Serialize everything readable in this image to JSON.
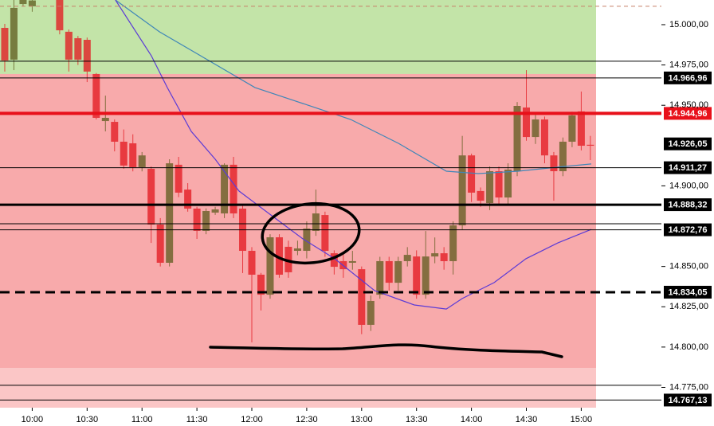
{
  "chart_data": {
    "type": "candlestick",
    "x": [
      585,
      590,
      595,
      600,
      615,
      620,
      625,
      630,
      635,
      640,
      645,
      650,
      655,
      660,
      665,
      670,
      675,
      680,
      685,
      690,
      695,
      700,
      705,
      710,
      715,
      720,
      725,
      730,
      735,
      740,
      745,
      750,
      755,
      760,
      765,
      770,
      775,
      780,
      785,
      790,
      795,
      800,
      805,
      810,
      815,
      820,
      825,
      830,
      835,
      840,
      845,
      850,
      855,
      860,
      865,
      870,
      875,
      880,
      885,
      890,
      895,
      900,
      905
    ],
    "open": [
      14998.0,
      14978.3,
      15012.8,
      15011.4,
      15016.0,
      14995.6,
      14991.6,
      14990.6,
      14969.4,
      14940.2,
      14939.7,
      14927.4,
      14926.4,
      14911.6,
      14910.6,
      14876.0,
      14852.3,
      14913.1,
      14897.7,
      14885.9,
      14872.1,
      14883.4,
      14882.9,
      14913.1,
      14885.9,
      14859.7,
      14844.9,
      14832.5,
      14868.1,
      14862.2,
      14859.7,
      14859.7,
      14872.1,
      14881.9,
      14858.2,
      14853.3,
      14852.3,
      14848.3,
      14813.8,
      14832.5,
      14853.3,
      14839.9,
      14853.3,
      14856.2,
      14832.5,
      14856.2,
      14858.2,
      14853.3,
      14875.5,
      14918.9,
      14896.8,
      14889.3,
      14909.1,
      14892.8,
      14909.1,
      14948.6,
      14930.3,
      14941.2,
      14918.9,
      14909.1,
      14927.4,
      14946.2,
      14925.5
    ],
    "close": [
      14977.8,
      15010.4,
      15015.3,
      15015.0,
      14996.5,
      14978.3,
      14978.3,
      14970.9,
      14942.2,
      14942.2,
      14927.4,
      14912.6,
      14911.6,
      14918.9,
      14876.0,
      14852.3,
      14914.0,
      14895.8,
      14885.9,
      14872.1,
      14884.4,
      14885.4,
      14913.1,
      14882.9,
      14859.7,
      14844.9,
      14832.5,
      14868.1,
      14844.9,
      14846.4,
      14861.2,
      14873.5,
      14882.9,
      14859.7,
      14849.8,
      14848.3,
      14853.3,
      14813.8,
      14828.6,
      14853.3,
      14839.9,
      14853.3,
      14857.2,
      14832.5,
      14856.2,
      14858.2,
      14853.3,
      14875.5,
      14918.9,
      14895.8,
      14890.8,
      14909.1,
      14892.8,
      14910.1,
      14949.6,
      14930.3,
      14941.2,
      14918.9,
      14909.1,
      14927.4,
      14943.7,
      14924.9,
      14924.9
    ],
    "high": [
      15000.5,
      15015.3,
      15016.0,
      15018.0,
      15020.0,
      14997.0,
      14993.0,
      14992.0,
      14970.0,
      14956.0,
      14941.2,
      14935.0,
      14932.0,
      14921.0,
      14912.0,
      14880.0,
      14916.5,
      14918.0,
      14901.7,
      14887.0,
      14886.0,
      14887.0,
      14914.0,
      14918.0,
      14888.0,
      14862.0,
      14846.0,
      14870.0,
      14870.0,
      14866.0,
      14866.0,
      14878.0,
      14897.7,
      14884.0,
      14860.0,
      14858.0,
      14859.7,
      14850.0,
      14832.0,
      14856.0,
      14856.0,
      14856.0,
      14862.0,
      14860.0,
      14872.0,
      14868.0,
      14862.0,
      14878.0,
      14931.0,
      14920.0,
      14899.0,
      14912.0,
      14912.0,
      14914.0,
      14952.0,
      14971.8,
      14944.0,
      14943.0,
      14921.0,
      14930.0,
      14946.0,
      14958.5,
      14931.0
    ],
    "low": [
      14970.9,
      14971.8,
      15011.4,
      15008.0,
      14994.0,
      14970.9,
      14975.0,
      14964.4,
      14941.2,
      14933.8,
      14921.4,
      14910.6,
      14909.0,
      14909.0,
      14864.6,
      14850.0,
      14850.0,
      14893.0,
      14884.0,
      14867.1,
      14870.0,
      14882.0,
      14880.0,
      14880.0,
      14845.9,
      14802.9,
      14822.7,
      14830.0,
      14843.0,
      14843.0,
      14857.0,
      14855.0,
      14869.0,
      14856.0,
      14845.0,
      14843.0,
      14848.0,
      14808.0,
      14810.0,
      14830.0,
      14835.0,
      14835.0,
      14850.0,
      14830.0,
      14830.0,
      14852.0,
      14848.0,
      14845.0,
      14873.0,
      14890.0,
      14887.0,
      14885.0,
      14888.0,
      14888.0,
      14906.0,
      14928.0,
      14926.0,
      14914.0,
      14890.8,
      14906.0,
      14924.0,
      14922.0,
      14916.0
    ],
    "up_color": "#5e5a1c",
    "down_color": "#e3141c",
    "series": [
      {
        "color": "#3f86b8",
        "x": [
          645.5,
          669.5,
          695.6,
          721.7,
          747.9,
          774.0,
          800.1,
          826.3,
          843.7,
          865.5,
          887.2,
          905.5
        ],
        "values": [
          15015.3,
          14995.6,
          14978.3,
          14961.0,
          14951.1,
          14941.2,
          14926.4,
          14909.1,
          14907.6,
          14909.1,
          14911.6,
          14913.6
        ]
      },
      {
        "color": "#5b3bd6",
        "x": [
          645.5,
          665.1,
          673.8,
          686.9,
          700.0,
          713.0,
          730.5,
          747.9,
          765.3,
          787.1,
          808.8,
          826.3,
          835.0,
          852.4,
          869.8,
          887.2,
          905.5
        ],
        "values": [
          15015.3,
          14980.7,
          14961.0,
          14933.8,
          14916.5,
          14896.8,
          14881.9,
          14867.1,
          14854.8,
          14835.0,
          14826.1,
          14823.6,
          14830.1,
          14840.0,
          14854.8,
          14864.6,
          14873.0
        ]
      }
    ],
    "zones": [
      {
        "from": 14969.4,
        "to": 15015.3,
        "color": "#c3e4a8"
      },
      {
        "from": 14787.0,
        "to": 14969.4,
        "color": "#f8aaab"
      },
      {
        "from": 14762.4,
        "to": 14787.0,
        "color": "#fbc6c6"
      }
    ],
    "guides": [
      {
        "value": 15011.4,
        "color": "#c8806a",
        "dash": true
      },
      {
        "value": 14977.3,
        "color": "#000000",
        "dash": false
      },
      {
        "value": 14876.5,
        "color": "#000000",
        "dash": false
      },
      {
        "value": 14776.3,
        "color": "#000000",
        "dash": false
      }
    ],
    "levels": [
      {
        "value": 14966.96,
        "label": "14.966,96",
        "color": "#000000",
        "width": 1,
        "dash": false,
        "line": true
      },
      {
        "value": 14944.96,
        "label": "14.944,96",
        "color": "#e8101a",
        "width": 4,
        "dash": false,
        "line": true
      },
      {
        "value": 14926.05,
        "label": "14.926,05",
        "color": "#000000",
        "width": 1,
        "dash": false,
        "line": false
      },
      {
        "value": 14911.27,
        "label": "14.911,27",
        "color": "#000000",
        "width": 1,
        "dash": false,
        "line": true
      },
      {
        "value": 14888.32,
        "label": "14.888,32",
        "color": "#000000",
        "width": 3,
        "dash": false,
        "line": true
      },
      {
        "value": 14872.76,
        "label": "14.872,76",
        "color": "#000000",
        "width": 1,
        "dash": false,
        "line": true
      },
      {
        "value": 14834.05,
        "label": "14.834,05",
        "color": "#000000",
        "width": 3,
        "dash": true,
        "line": true
      },
      {
        "value": 14767.13,
        "label": "14.767,13",
        "color": "#000000",
        "width": 1,
        "dash": false,
        "line": true
      }
    ],
    "xlim": [
      582.4,
      908.1
    ],
    "xticks": [
      {
        "value": 600,
        "label": "10:00"
      },
      {
        "value": 630,
        "label": "10:30"
      },
      {
        "value": 660,
        "label": "11:00"
      },
      {
        "value": 690,
        "label": "11:30"
      },
      {
        "value": 720,
        "label": "12:00"
      },
      {
        "value": 750,
        "label": "12:30"
      },
      {
        "value": 780,
        "label": "13:00"
      },
      {
        "value": 810,
        "label": "13:30"
      },
      {
        "value": 840,
        "label": "14:00"
      },
      {
        "value": 870,
        "label": "14:30"
      },
      {
        "value": 900,
        "label": "15:00"
      }
    ],
    "ylim": [
      14762.4,
      15015.3
    ],
    "yticks": [
      {
        "value": 15000,
        "label": "15.000,00"
      },
      {
        "value": 14975,
        "label": "14.975,00"
      },
      {
        "value": 14950,
        "label": "14.950,00"
      },
      {
        "value": 14900,
        "label": "14.900,00"
      },
      {
        "value": 14850,
        "label": "14.850,00"
      },
      {
        "value": 14825,
        "label": "14.825,00"
      },
      {
        "value": 14800,
        "label": "14.800,00"
      },
      {
        "value": 14775,
        "label": "14.775,00"
      }
    ]
  }
}
